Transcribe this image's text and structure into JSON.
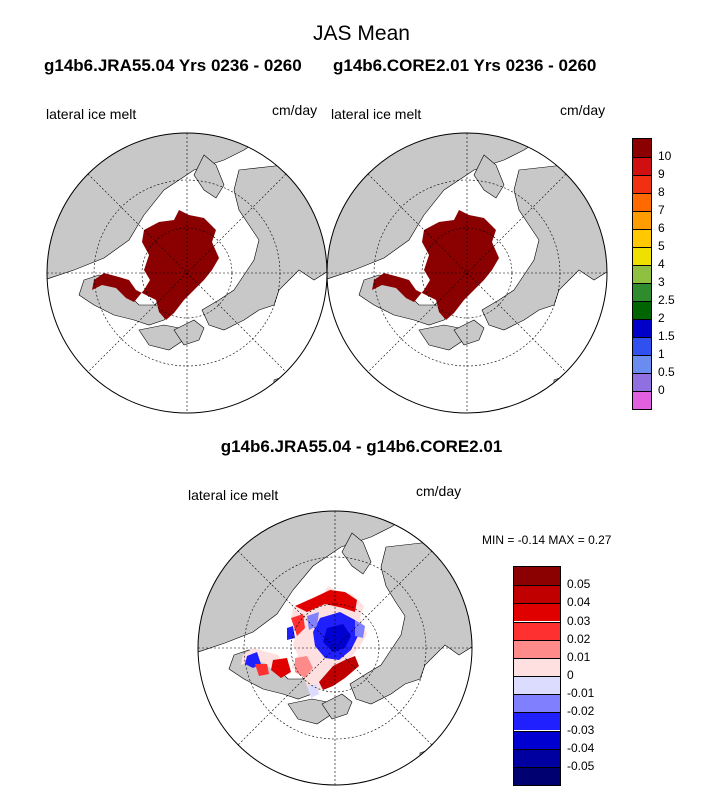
{
  "title": "JAS Mean",
  "panels": [
    {
      "subtitle": "g14b6.JRA55.04  Yrs 0236 - 0260",
      "variable": "lateral ice melt",
      "units": "cm/day"
    },
    {
      "subtitle": "g14b6.CORE2.01  Yrs 0236 - 0260",
      "variable": "lateral ice melt",
      "units": "cm/day"
    }
  ],
  "difference": {
    "title": "g14b6.JRA55.04 - g14b6.CORE2.01",
    "variable": "lateral ice melt",
    "units": "cm/day",
    "min_label": "MIN =",
    "min_value": "-0.14",
    "max_label": "MAX =",
    "max_value": "0.27"
  },
  "colorbar_top": {
    "labels": [
      "10",
      "9",
      "8",
      "7",
      "6",
      "5",
      "4",
      "3",
      "2.5",
      "2",
      "1.5",
      "1",
      "0.5",
      "0"
    ],
    "colors": [
      "#8b0000",
      "#d01010",
      "#f03010",
      "#ff6a00",
      "#ff9c00",
      "#ffc800",
      "#f0e000",
      "#90c040",
      "#2e8b2e",
      "#006400",
      "#0000c8",
      "#3050f0",
      "#6a8cf0",
      "#9070e0",
      "#e060e0"
    ]
  },
  "colorbar_diff": {
    "labels": [
      "0.05",
      "0.04",
      "0.03",
      "0.02",
      "0.01",
      "0",
      "-0.01",
      "-0.02",
      "-0.03",
      "-0.04",
      "-0.05"
    ],
    "colors": [
      "#8b0000",
      "#c00000",
      "#e00000",
      "#ff3030",
      "#ff8a8a",
      "#ffe0e0",
      "#dcdcff",
      "#8080ff",
      "#2020ff",
      "#0000d0",
      "#0000a0",
      "#000070"
    ]
  },
  "map_colors": {
    "land": "#c8c8c8",
    "ocean": "#ffffff",
    "melt": "#8b0000"
  }
}
